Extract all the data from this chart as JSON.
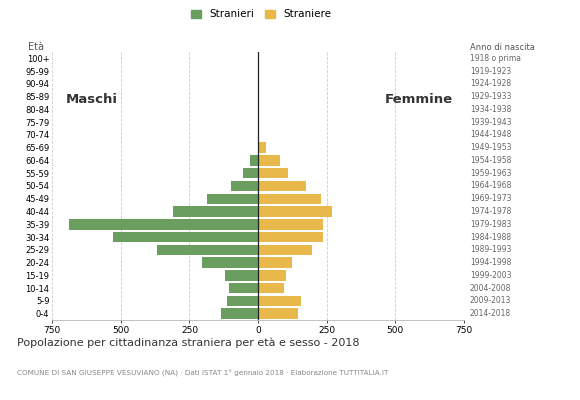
{
  "age_groups": [
    "0-4",
    "5-9",
    "10-14",
    "15-19",
    "20-24",
    "25-29",
    "30-34",
    "35-39",
    "40-44",
    "45-49",
    "50-54",
    "55-59",
    "60-64",
    "65-69",
    "70-74",
    "75-79",
    "80-84",
    "85-89",
    "90-94",
    "95-99",
    "100+"
  ],
  "birth_years": [
    "2014-2018",
    "2009-2013",
    "2004-2008",
    "1999-2003",
    "1994-1998",
    "1989-1993",
    "1984-1988",
    "1979-1983",
    "1974-1978",
    "1969-1973",
    "1964-1968",
    "1959-1963",
    "1954-1958",
    "1949-1953",
    "1944-1948",
    "1939-1943",
    "1934-1938",
    "1929-1933",
    "1924-1928",
    "1919-1923",
    "1918 o prima"
  ],
  "males": [
    135,
    115,
    105,
    120,
    205,
    370,
    530,
    690,
    310,
    185,
    100,
    55,
    30,
    0,
    0,
    0,
    0,
    0,
    0,
    0,
    0
  ],
  "females": [
    145,
    155,
    95,
    100,
    125,
    195,
    235,
    235,
    270,
    230,
    175,
    110,
    80,
    30,
    5,
    0,
    0,
    0,
    0,
    0,
    0
  ],
  "male_color": "#6a9e5e",
  "female_color": "#e8b84b",
  "center_line_color": "#222222",
  "grid_color": "#cccccc",
  "bg_color": "#ffffff",
  "title": "Popolazione per cittadinanza straniera per età e sesso - 2018",
  "subtitle": "COMUNE DI SAN GIUSEPPE VESUVIANO (NA) · Dati ISTAT 1° gennaio 2018 · Elaborazione TUTTITALIA.IT",
  "legend_male": "Stranieri",
  "legend_female": "Straniere",
  "label_left": "Maschi",
  "label_right": "Femmine",
  "ylabel_left": "Età",
  "ylabel_right": "Anno di nascita",
  "xlim": 750
}
